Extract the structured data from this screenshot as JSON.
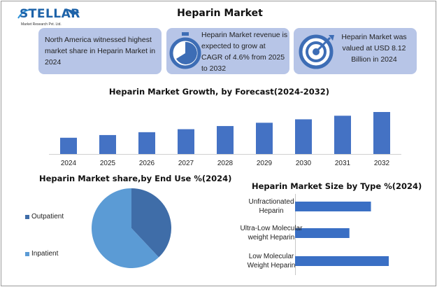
{
  "header": {
    "logo_text": "STELLAR",
    "logo_subtext": "Market Research Pvt. Ltd.",
    "title": "Heparin Market"
  },
  "cards": [
    {
      "icon": "globe-icon",
      "text": "North America witnessed highest market share in Heparin Market in 2024"
    },
    {
      "icon": "stopwatch-icon",
      "text": "Heparin Market revenue is expected to grow at CAGR of 4.6% from 2025 to 2032"
    },
    {
      "icon": "target-icon",
      "text": "Heparin Market was valued at USD 8.12 Billion in 2024"
    }
  ],
  "colors": {
    "card_bg": "#b7c5e7",
    "bar": "#4472c4",
    "pie_outpatient": "#3f6da8",
    "pie_inpatient": "#5b9bd5",
    "hbar": "#3a6fc4"
  },
  "chart_data": [
    {
      "type": "bar",
      "title": "Heparin Market Growth, by Forecast(2024-2032)",
      "categories": [
        "2024",
        "2025",
        "2026",
        "2027",
        "2028",
        "2029",
        "2030",
        "2031",
        "2032"
      ],
      "values": [
        8.12,
        8.49,
        8.88,
        9.29,
        9.72,
        10.17,
        10.64,
        11.13,
        11.64
      ],
      "xlabel": "",
      "ylabel": "",
      "ylim": [
        5.9,
        11.64
      ],
      "grid": false,
      "value_axis_visible": false
    },
    {
      "type": "pie",
      "title": "Heparin Market share,by End Use %(2024)",
      "labels": [
        "Outpatient",
        "Inpatient"
      ],
      "values": [
        38,
        62
      ],
      "legend": "left"
    },
    {
      "type": "bar",
      "orientation": "horizontal",
      "title": "Heparin Market Size by Type %(2024)",
      "categories": [
        "Unfractionated Heparin",
        "Ultra-Low Molecular weight Heparin",
        "Low Molecular Weight Heparin"
      ],
      "category_lines": [
        [
          "Unfractionated",
          "Heparin"
        ],
        [
          "Ultra-Low Molecular",
          "weight Heparin"
        ],
        [
          "Low Molecular",
          "Weight Heparin"
        ]
      ],
      "values": [
        81,
        58,
        100
      ],
      "xlim": [
        0,
        100
      ],
      "grid": false,
      "value_axis_visible": false
    }
  ]
}
